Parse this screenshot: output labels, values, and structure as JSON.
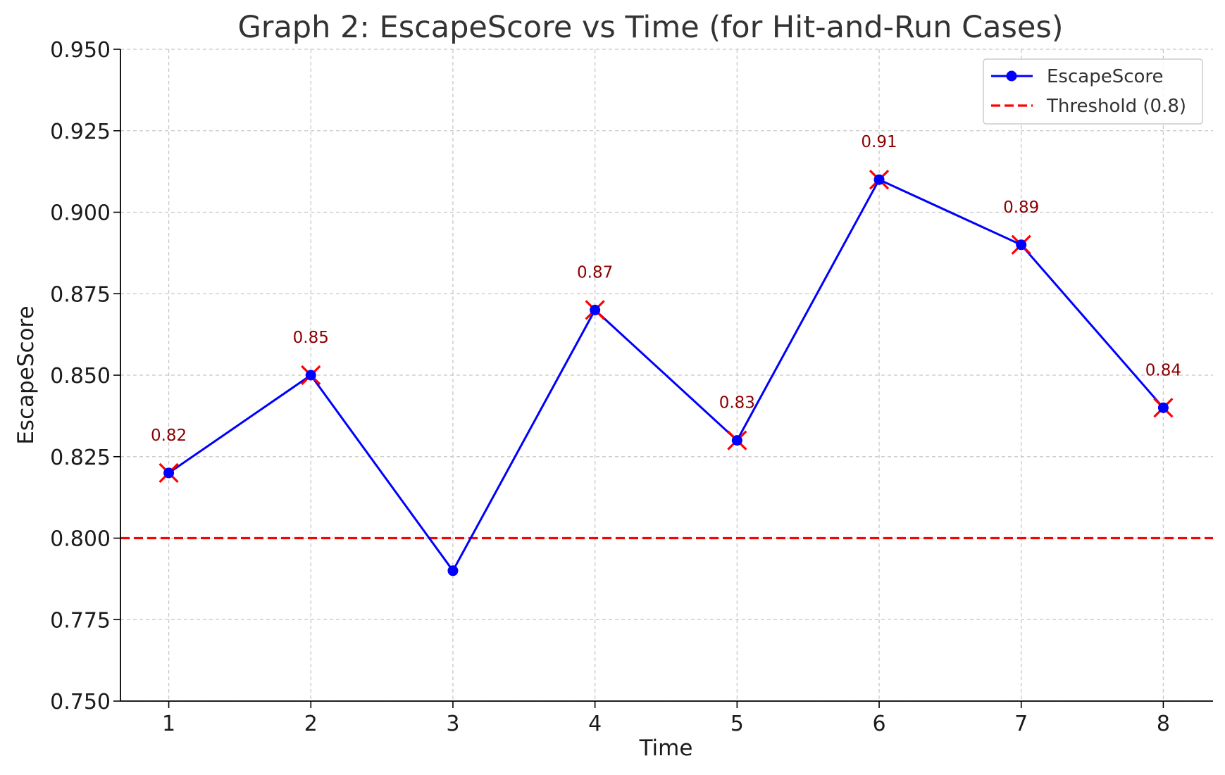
{
  "chart_data": {
    "type": "line",
    "title": "Graph 2: EscapeScore vs Time (for Hit-and-Run Cases)",
    "xlabel": "Time",
    "ylabel": "EscapeScore",
    "x": [
      1,
      2,
      3,
      4,
      5,
      6,
      7,
      8
    ],
    "xlim": [
      0.66,
      8.35
    ],
    "ylim": [
      0.75,
      0.95
    ],
    "x_ticks": [
      "1",
      "2",
      "3",
      "4",
      "5",
      "6",
      "7",
      "8"
    ],
    "y_ticks": [
      "0.750",
      "0.775",
      "0.800",
      "0.825",
      "0.850",
      "0.875",
      "0.900",
      "0.925",
      "0.950"
    ],
    "grid": true,
    "legend_position": "top-right",
    "series": [
      {
        "name": "EscapeScore",
        "values": [
          0.82,
          0.85,
          0.79,
          0.87,
          0.83,
          0.91,
          0.89,
          0.84
        ],
        "color": "#0000ff",
        "marker": "circle"
      }
    ],
    "threshold": {
      "name": "Threshold (0.8)",
      "value": 0.8,
      "color": "#ff0000",
      "style": "dashed"
    },
    "highlighted": {
      "x": [
        1,
        2,
        4,
        5,
        6,
        7,
        8
      ],
      "values": [
        0.82,
        0.85,
        0.87,
        0.83,
        0.91,
        0.89,
        0.84
      ],
      "labels": [
        "0.82",
        "0.85",
        "0.87",
        "0.83",
        "0.91",
        "0.89",
        "0.84"
      ],
      "marker": "x",
      "color": "#ff0000"
    },
    "colors": {
      "grid": "#c8c8c8",
      "axis": "#000000",
      "label": "#8b0000"
    }
  }
}
